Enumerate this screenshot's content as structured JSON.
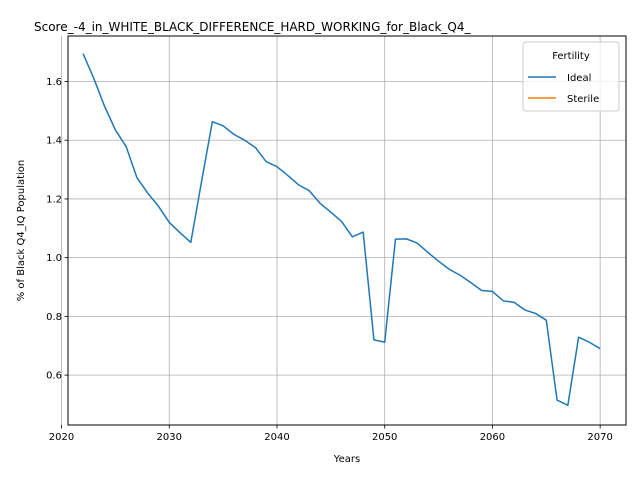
{
  "chart_data": {
    "type": "line",
    "title": "Score_-4_in_WHITE_BLACK_DIFFERENCE_HARD_WORKING_for_Black_Q4_",
    "xlabel": "Years",
    "ylabel": "% of Black Q4_IQ Population",
    "xlim": [
      2020.6,
      2072.4
    ],
    "ylim": [
      0.43,
      1.755
    ],
    "x_ticks": [
      2020,
      2030,
      2040,
      2050,
      2060,
      2070
    ],
    "y_ticks": [
      0.6,
      0.8,
      1.0,
      1.2,
      1.4,
      1.6
    ],
    "y_tick_labels": [
      "0.6",
      "0.8",
      "1.0",
      "1.2",
      "1.4",
      "1.6"
    ],
    "grid": true,
    "legend": {
      "title": "Fertility",
      "placement": "top-right"
    },
    "series": [
      {
        "name": "Ideal",
        "color": "#1f77b4",
        "x": [
          2022,
          2023,
          2024,
          2025,
          2026,
          2027,
          2028,
          2029,
          2030,
          2031,
          2032,
          2033,
          2034,
          2035,
          2036,
          2037,
          2038,
          2039,
          2040,
          2041,
          2042,
          2043,
          2044,
          2045,
          2046,
          2047,
          2048,
          2049,
          2050,
          2051,
          2052,
          2053,
          2054,
          2055,
          2056,
          2057,
          2058,
          2059,
          2060,
          2061,
          2062,
          2063,
          2064,
          2065,
          2066,
          2067,
          2068,
          2069,
          2070
        ],
        "values": [
          1.695,
          1.61,
          1.515,
          1.435,
          1.378,
          1.272,
          1.22,
          1.175,
          1.12,
          1.085,
          1.052,
          1.26,
          1.463,
          1.449,
          1.42,
          1.4,
          1.375,
          1.327,
          1.31,
          1.28,
          1.248,
          1.228,
          1.185,
          1.155,
          1.123,
          1.071,
          1.087,
          0.72,
          0.712,
          1.063,
          1.064,
          1.05,
          1.018,
          0.988,
          0.96,
          0.94,
          0.915,
          0.888,
          0.885,
          0.853,
          0.848,
          0.822,
          0.81,
          0.787,
          0.515,
          0.497,
          0.729,
          0.712,
          0.69
        ]
      },
      {
        "name": "Sterile",
        "color": "#ff7f0e",
        "x": [],
        "values": []
      }
    ]
  }
}
